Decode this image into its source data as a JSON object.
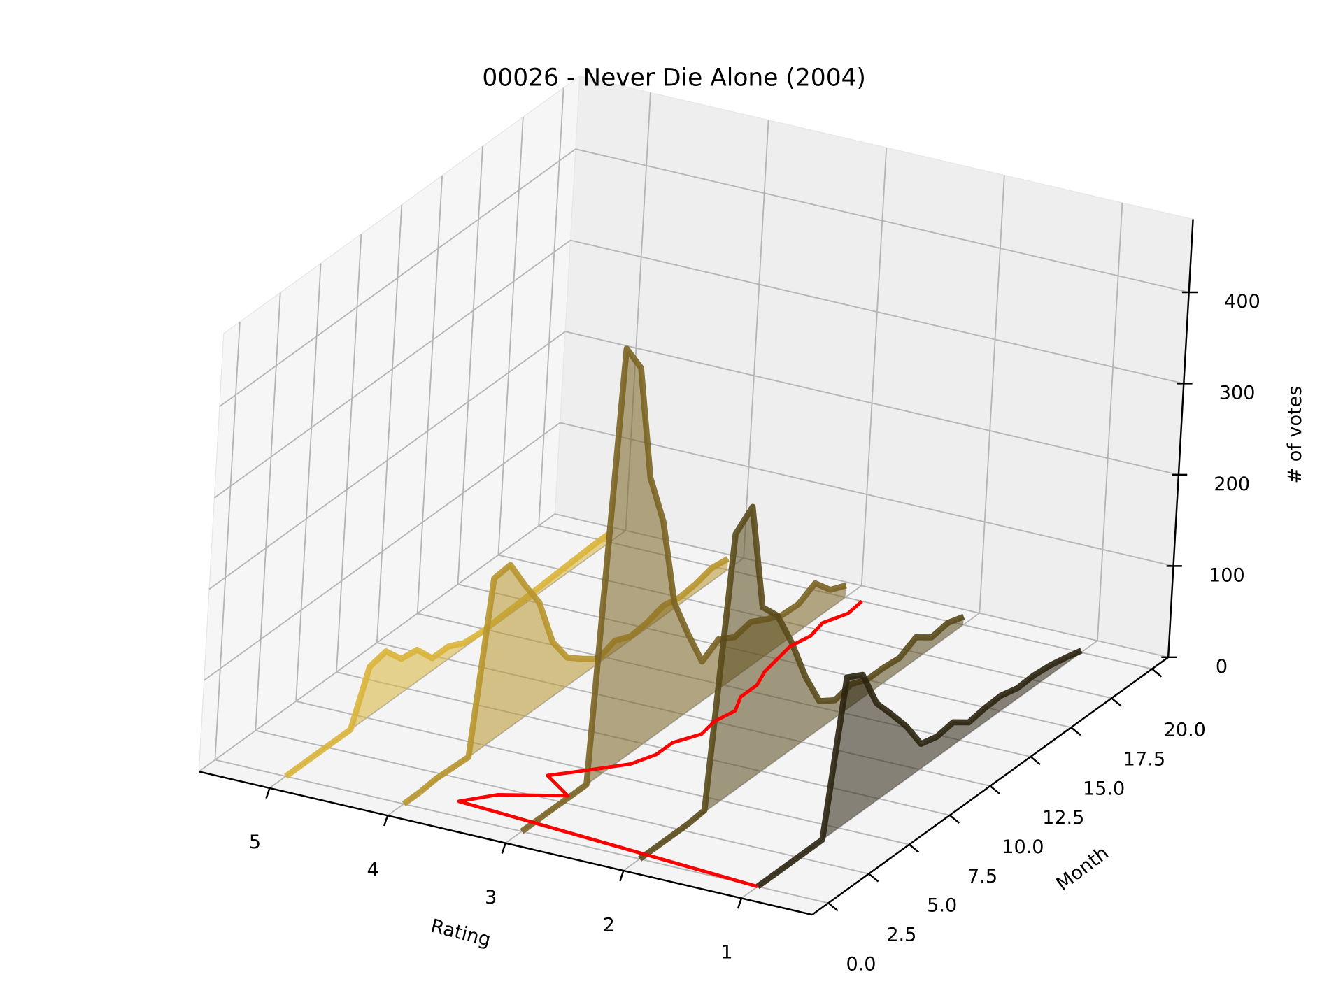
{
  "chart_data": {
    "type": "line3d",
    "title": "00026 - Never Die Alone (2004)",
    "xlabel": "Rating",
    "ylabel": "Month",
    "zlabel": "# of votes",
    "x": [
      0,
      1,
      2,
      3,
      4,
      5,
      6,
      7,
      8,
      9,
      10,
      11,
      12,
      13,
      14,
      15,
      16,
      17,
      18,
      19,
      20
    ],
    "series": [
      {
        "rating": 5,
        "color": "#d9b43a",
        "values": [
          0,
          0,
          0,
          0,
          0,
          56,
          60,
          39,
          36,
          14,
          14,
          5,
          3,
          4,
          5,
          6,
          7,
          8,
          9,
          10,
          10
        ]
      },
      {
        "rating": 4,
        "color": "#b7952c",
        "values": [
          0,
          0,
          2,
          1,
          0,
          183,
          185,
          150,
          118,
          62,
          32,
          18,
          5,
          12,
          4,
          6,
          12,
          8,
          10,
          15,
          12
        ]
      },
      {
        "rating": 3,
        "color": "#7a6322",
        "values": [
          0,
          0,
          0,
          0,
          0,
          465,
          431,
          298,
          237,
          135,
          88,
          45,
          57,
          46,
          50,
          40,
          32,
          31,
          41,
          21,
          13
        ]
      },
      {
        "rating": 2,
        "color": "#5a4a1b",
        "values": [
          0,
          0,
          0,
          0,
          2,
          292,
          309,
          186,
          164,
          122,
          72,
          32,
          20,
          25,
          17,
          17,
          15,
          25,
          12,
          15,
          9
        ]
      },
      {
        "rating": 1,
        "color": "#2b2310",
        "values": [
          0,
          0,
          0,
          0,
          0,
          165,
          155,
          111,
          86,
          60,
          28,
          23,
          26,
          13,
          16,
          17,
          12,
          13,
          11,
          7,
          2
        ]
      }
    ],
    "mean_rating": {
      "color": "#ff0000",
      "values": [
        1,
        3.67,
        3.48,
        3.02,
        3.33,
        3.11,
        2.9,
        2.82,
        2.82,
        2.71,
        2.74,
        2.7,
        2.79,
        2.79,
        2.86,
        2.89,
        2.92,
        2.88,
        2.92,
        2.84,
        2.86
      ]
    },
    "xlim": [
      0.4,
      5.6
    ],
    "ylim": [
      -1,
      21
    ],
    "zlim": [
      0,
      480
    ],
    "xticks": [
      1,
      2,
      3,
      4,
      5
    ],
    "yticks": [
      {
        "value": 0,
        "label": "0.0"
      },
      2.5,
      {
        "value": 5,
        "label": "5.0"
      },
      7.5,
      {
        "value": 10,
        "label": "10.0"
      },
      12.5,
      {
        "value": 15,
        "label": "15.0"
      },
      17.5,
      {
        "value": 20,
        "label": "20.0"
      }
    ],
    "zticks": [
      0,
      100,
      200,
      300,
      400
    ],
    "grid": true
  }
}
